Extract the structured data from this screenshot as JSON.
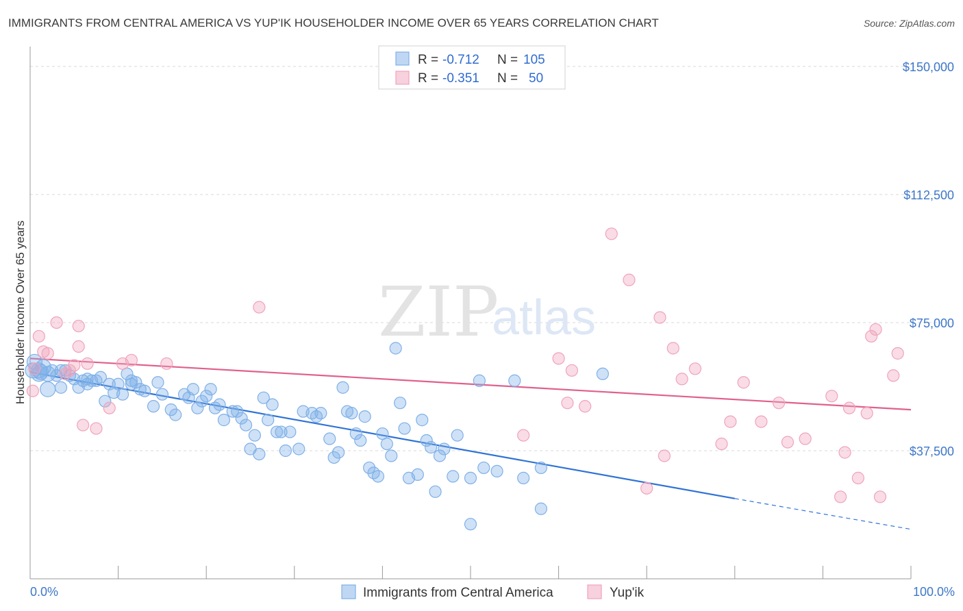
{
  "title": "IMMIGRANTS FROM CENTRAL AMERICA VS YUP'IK HOUSEHOLDER INCOME OVER 65 YEARS CORRELATION CHART",
  "source": "Source: ZipAtlas.com",
  "watermark": {
    "zip": "ZIP",
    "atlas": "atlas"
  },
  "legend": {
    "r_label": "R =",
    "n_label": "N =",
    "entries": [
      {
        "r": "-0.712",
        "n": "105",
        "color": "#7fb0e8"
      },
      {
        "r": "-0.351",
        "n": "50",
        "color": "#f0a3bb"
      }
    ]
  },
  "bottom_legend": [
    "Immigrants from Central America",
    "Yup'ik"
  ],
  "chart_data": {
    "type": "scatter",
    "title": "IMMIGRANTS FROM CENTRAL AMERICA VS YUP'IK HOUSEHOLDER INCOME OVER 65 YEARS CORRELATION CHART",
    "xlabel": "",
    "ylabel": "Householder Income Over 65 years",
    "xlim": [
      0,
      100
    ],
    "ylim": [
      0,
      155000
    ],
    "x_tick_labels": [
      "0.0%",
      "100.0%"
    ],
    "y_ticks": [
      37500,
      75000,
      112500,
      150000
    ],
    "y_tick_labels": [
      "$37,500",
      "$75,000",
      "$112,500",
      "$150,000"
    ],
    "grid": "horizontal dashed",
    "series": [
      {
        "name": "Immigrants from Central America",
        "color": "#7fb0e8",
        "line_color": "#2f72d6",
        "trend": {
          "x0": 0,
          "y0": 60500,
          "x1": 80,
          "y1": 23500,
          "dash_to_x": 100,
          "dash_to_y": 14500
        },
        "points": [
          [
            0.3,
            61000
          ],
          [
            0.5,
            63500
          ],
          [
            1.0,
            61000
          ],
          [
            1.2,
            60500
          ],
          [
            1.5,
            62000
          ],
          [
            2.0,
            60000
          ],
          [
            2.5,
            61000
          ],
          [
            3.0,
            59500
          ],
          [
            3.5,
            56000
          ],
          [
            4.0,
            61000
          ],
          [
            4.5,
            59500
          ],
          [
            5.0,
            58500
          ],
          [
            5.5,
            56000
          ],
          [
            6.0,
            58000
          ],
          [
            6.5,
            58500
          ],
          [
            7.0,
            58000
          ],
          [
            7.5,
            58000
          ],
          [
            8.0,
            59000
          ],
          [
            8.5,
            52000
          ],
          [
            9.0,
            57000
          ],
          [
            9.5,
            54500
          ],
          [
            10.0,
            57000
          ],
          [
            10.5,
            54000
          ],
          [
            11.0,
            60000
          ],
          [
            11.5,
            58000
          ],
          [
            12.0,
            57500
          ],
          [
            12.5,
            55500
          ],
          [
            13.0,
            55000
          ],
          [
            14.0,
            50500
          ],
          [
            14.5,
            57500
          ],
          [
            15.0,
            54000
          ],
          [
            16.0,
            49500
          ],
          [
            16.5,
            48000
          ],
          [
            17.5,
            54000
          ],
          [
            18.0,
            53000
          ],
          [
            18.5,
            55500
          ],
          [
            19.0,
            50000
          ],
          [
            19.5,
            52000
          ],
          [
            20.5,
            55500
          ],
          [
            21.0,
            50000
          ],
          [
            21.5,
            51000
          ],
          [
            22.0,
            46500
          ],
          [
            23.0,
            49000
          ],
          [
            23.5,
            49000
          ],
          [
            24.0,
            47000
          ],
          [
            24.5,
            45000
          ],
          [
            25.0,
            38000
          ],
          [
            25.5,
            42000
          ],
          [
            26.0,
            36500
          ],
          [
            26.5,
            53000
          ],
          [
            27.0,
            46500
          ],
          [
            27.5,
            51000
          ],
          [
            28.0,
            43000
          ],
          [
            28.5,
            43000
          ],
          [
            29.0,
            37500
          ],
          [
            29.5,
            43000
          ],
          [
            30.5,
            38000
          ],
          [
            31.0,
            49000
          ],
          [
            32.0,
            48500
          ],
          [
            32.5,
            47500
          ],
          [
            33.0,
            48500
          ],
          [
            34.0,
            41000
          ],
          [
            34.5,
            35500
          ],
          [
            35.0,
            37000
          ],
          [
            35.5,
            56000
          ],
          [
            36.0,
            49000
          ],
          [
            36.5,
            48500
          ],
          [
            37.0,
            42500
          ],
          [
            37.5,
            40500
          ],
          [
            38.0,
            47500
          ],
          [
            38.5,
            32500
          ],
          [
            39.0,
            31000
          ],
          [
            39.5,
            30000
          ],
          [
            40.0,
            42500
          ],
          [
            40.5,
            39500
          ],
          [
            41.0,
            36000
          ],
          [
            41.5,
            67500
          ],
          [
            42.0,
            51500
          ],
          [
            42.5,
            44000
          ],
          [
            43.0,
            29500
          ],
          [
            44.0,
            30500
          ],
          [
            44.5,
            46500
          ],
          [
            45.0,
            40500
          ],
          [
            45.5,
            38500
          ],
          [
            46.0,
            25500
          ],
          [
            46.5,
            36000
          ],
          [
            47.0,
            38000
          ],
          [
            48.0,
            30000
          ],
          [
            48.5,
            42000
          ],
          [
            50.0,
            29500
          ],
          [
            51.0,
            58000
          ],
          [
            51.5,
            32500
          ],
          [
            53.0,
            31500
          ],
          [
            55.0,
            58000
          ],
          [
            56.0,
            29500
          ],
          [
            58.0,
            32500
          ],
          [
            58.0,
            20500
          ],
          [
            65.0,
            60000
          ],
          [
            50.0,
            16000
          ],
          [
            2.0,
            55500
          ],
          [
            6.5,
            57000
          ],
          [
            1.0,
            60000
          ],
          [
            3.5,
            61000
          ],
          [
            11.5,
            57000
          ],
          [
            20.0,
            53500
          ]
        ]
      },
      {
        "name": "Yup'ik",
        "color": "#f0a3bb",
        "line_color": "#e0608d",
        "trend": {
          "x0": 0,
          "y0": 64500,
          "x1": 100,
          "y1": 49500
        },
        "points": [
          [
            0.3,
            55000
          ],
          [
            0.5,
            61500
          ],
          [
            1.0,
            71000
          ],
          [
            1.5,
            66500
          ],
          [
            2.0,
            66000
          ],
          [
            3.0,
            75000
          ],
          [
            4.0,
            60000
          ],
          [
            4.5,
            61000
          ],
          [
            5.0,
            62500
          ],
          [
            5.5,
            74000
          ],
          [
            5.5,
            68000
          ],
          [
            6.0,
            45000
          ],
          [
            6.5,
            63000
          ],
          [
            7.5,
            44000
          ],
          [
            9.0,
            50000
          ],
          [
            10.5,
            63000
          ],
          [
            11.5,
            64000
          ],
          [
            15.5,
            63000
          ],
          [
            26.0,
            79500
          ],
          [
            56.0,
            42000
          ],
          [
            60.0,
            64500
          ],
          [
            61.0,
            51500
          ],
          [
            61.5,
            61000
          ],
          [
            63.0,
            50500
          ],
          [
            66.0,
            101000
          ],
          [
            68.0,
            87500
          ],
          [
            70.0,
            26500
          ],
          [
            71.5,
            76500
          ],
          [
            72.0,
            36000
          ],
          [
            73.0,
            67500
          ],
          [
            74.0,
            58500
          ],
          [
            75.5,
            61500
          ],
          [
            78.5,
            39500
          ],
          [
            79.5,
            46000
          ],
          [
            81.0,
            57500
          ],
          [
            83.0,
            46000
          ],
          [
            85.0,
            51500
          ],
          [
            86.0,
            40000
          ],
          [
            88.0,
            41000
          ],
          [
            91.0,
            53500
          ],
          [
            92.0,
            24000
          ],
          [
            92.5,
            37000
          ],
          [
            93.0,
            50000
          ],
          [
            94.0,
            29500
          ],
          [
            95.0,
            48500
          ],
          [
            95.5,
            71000
          ],
          [
            96.0,
            73000
          ],
          [
            96.5,
            24000
          ],
          [
            98.0,
            59500
          ],
          [
            98.5,
            66000
          ]
        ]
      }
    ]
  }
}
